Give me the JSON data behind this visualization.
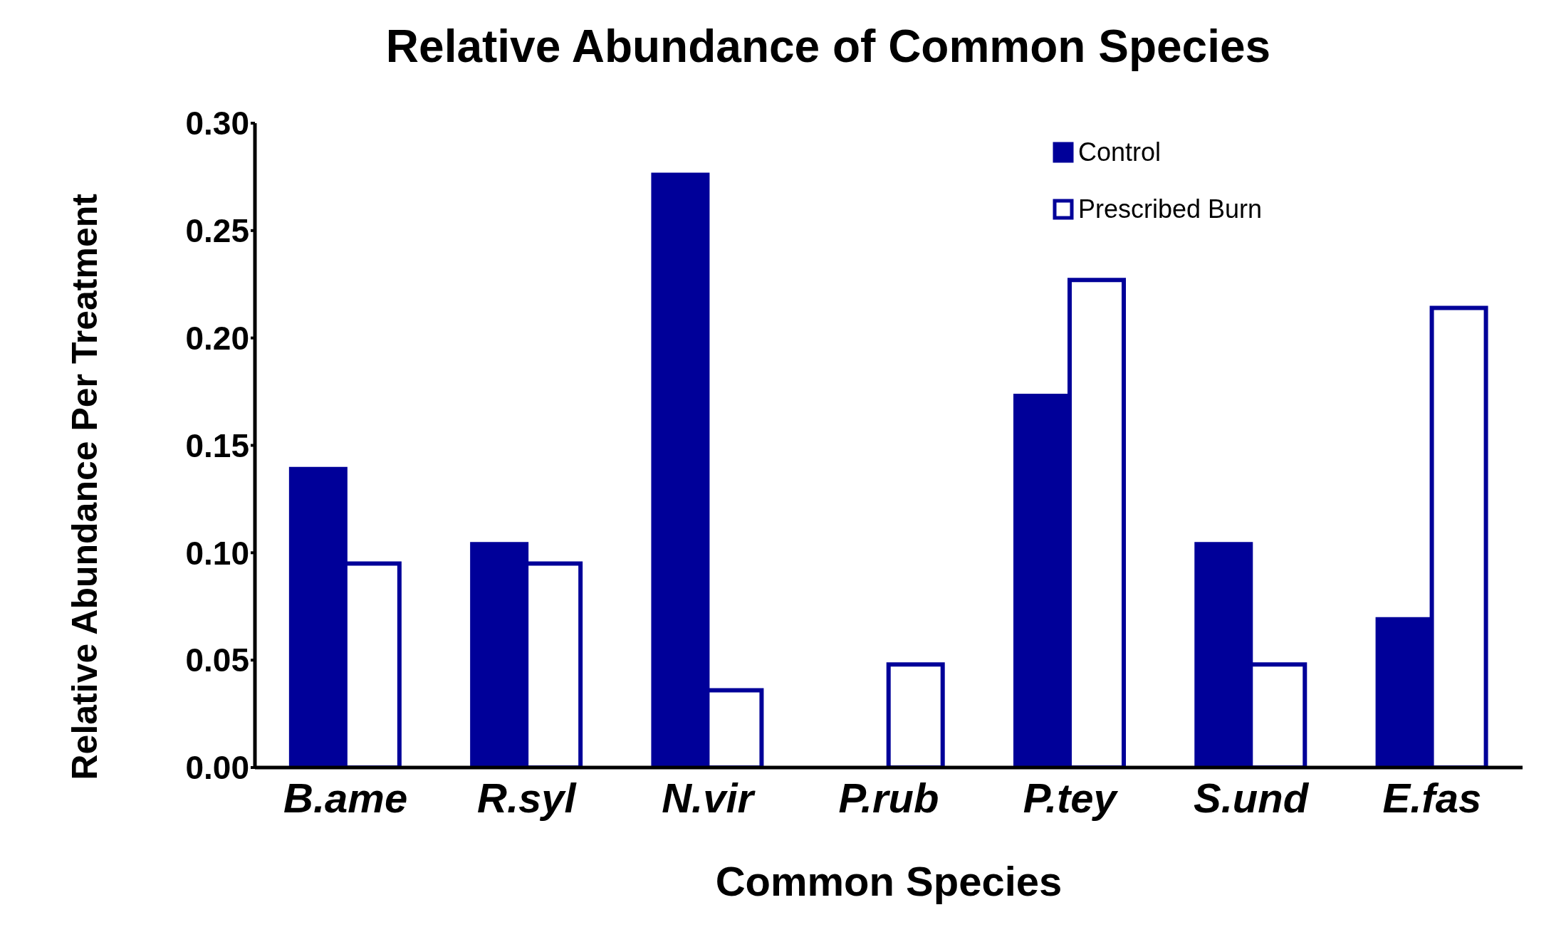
{
  "chart_data": {
    "type": "bar",
    "title": "Relative Abundance of Common Species",
    "xlabel": "Common Species",
    "ylabel": "Relative Abundance Per Treatment",
    "categories": [
      "B.ame",
      "R.syl",
      "N.vir",
      "P.rub",
      "P.tey",
      "S.und",
      "E.fas"
    ],
    "series": [
      {
        "name": "Control",
        "color": "#000099",
        "values": [
          0.139,
          0.104,
          0.276,
          0,
          0.173,
          0.104,
          0.069
        ]
      },
      {
        "name": "Prescribed Burn",
        "color": "#ffffff",
        "values": [
          0.095,
          0.095,
          0.036,
          0.048,
          0.227,
          0.048,
          0.214
        ]
      }
    ],
    "ylim": [
      0,
      0.3
    ],
    "yticks": [
      {
        "value": 0,
        "label": "0.00"
      },
      {
        "value": 0.05,
        "label": "0.05"
      },
      {
        "value": 0.1,
        "label": "0.10"
      },
      {
        "value": 0.15,
        "label": "0.15"
      },
      {
        "value": 0.2,
        "label": "0.20"
      },
      {
        "value": 0.25,
        "label": "0.25"
      },
      {
        "value": 0.3,
        "label": "0.30"
      }
    ],
    "grid": false,
    "legend": "top right"
  }
}
